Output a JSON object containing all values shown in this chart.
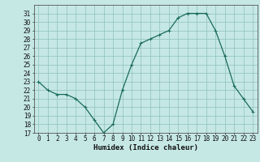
{
  "x": [
    0,
    1,
    2,
    3,
    4,
    5,
    6,
    7,
    8,
    9,
    10,
    11,
    12,
    13,
    14,
    15,
    16,
    17,
    18,
    19,
    20,
    21,
    22,
    23
  ],
  "y": [
    23,
    22,
    21.5,
    21.5,
    21,
    20,
    18.5,
    17,
    18,
    22,
    25,
    27.5,
    28,
    28.5,
    29,
    30.5,
    31,
    31,
    31,
    29,
    26,
    22.5,
    21,
    19.5
  ],
  "line_color": "#1a6b5a",
  "marker": "+",
  "marker_size": 3,
  "bg_color": "#c5e8e5",
  "grid_color": "#8fbfba",
  "xlabel": "Humidex (Indice chaleur)",
  "xlim": [
    -0.5,
    23.5
  ],
  "ylim": [
    17,
    32
  ],
  "yticks": [
    17,
    18,
    19,
    20,
    21,
    22,
    23,
    24,
    25,
    26,
    27,
    28,
    29,
    30,
    31
  ],
  "xticks": [
    0,
    1,
    2,
    3,
    4,
    5,
    6,
    7,
    8,
    9,
    10,
    11,
    12,
    13,
    14,
    15,
    16,
    17,
    18,
    19,
    20,
    21,
    22,
    23
  ],
  "tick_labelsize": 5.5,
  "xlabel_fontsize": 6.5,
  "line_width": 0.9
}
